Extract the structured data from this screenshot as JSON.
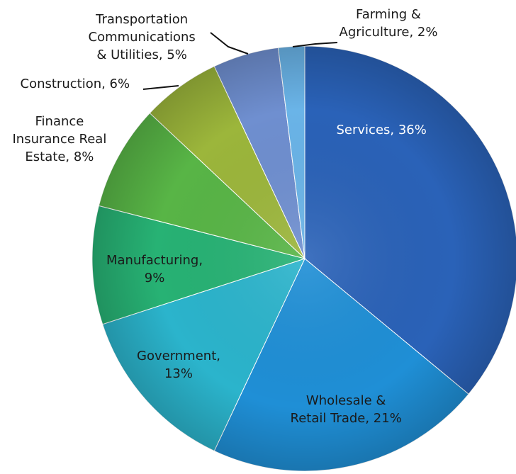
{
  "chart_data": {
    "type": "pie",
    "title": "",
    "slices": [
      {
        "label": "Services",
        "value": 36,
        "color": "#2a62b8",
        "label_lines": [
          "Services, 36%"
        ]
      },
      {
        "label": "Wholesale & Retail Trade",
        "value": 21,
        "color": "#1f8fd6",
        "label_lines": [
          "Wholesale &",
          "Retail Trade, 21%"
        ]
      },
      {
        "label": "Government",
        "value": 13,
        "color": "#2bb4cc",
        "label_lines": [
          "Government,",
          "13%"
        ]
      },
      {
        "label": "Manufacturing",
        "value": 9,
        "color": "#27b274",
        "label_lines": [
          "Manufacturing,",
          "9%"
        ]
      },
      {
        "label": "Finance Insurance Real Estate",
        "value": 8,
        "color": "#58b546",
        "label_lines": [
          "Finance",
          "Insurance Real",
          "Estate, 8%"
        ]
      },
      {
        "label": "Construction",
        "value": 6,
        "color": "#9cb63b",
        "label_lines": [
          "Construction, 6%"
        ]
      },
      {
        "label": "Transportation Communications & Utilities",
        "value": 5,
        "color": "#6f8fd0",
        "label_lines": [
          "Transportation",
          "Communications",
          "& Utilities, 5%"
        ]
      },
      {
        "label": "Farming & Agriculture",
        "value": 2,
        "color": "#6ab4e8",
        "label_lines": [
          "Farming &",
          "Agriculture, 2%"
        ]
      }
    ]
  }
}
